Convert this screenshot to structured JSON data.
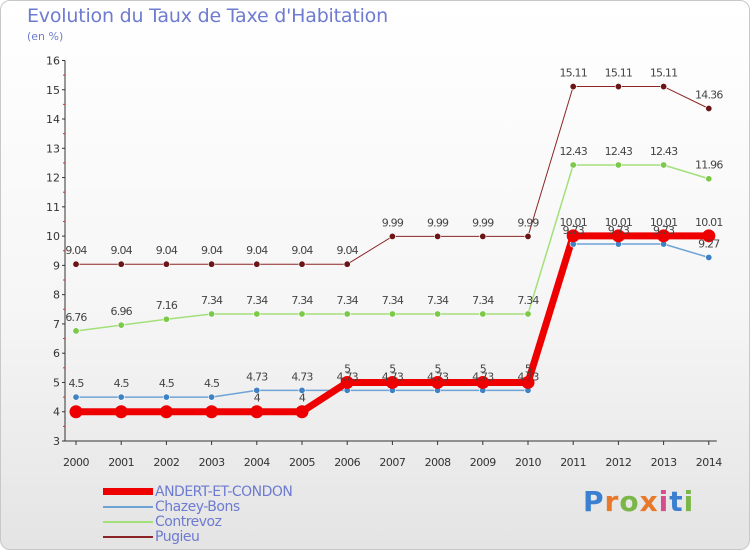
{
  "title": "Evolution du Taux de Taxe d'Habitation",
  "unit": "(en %)",
  "brand": {
    "letters": [
      "P",
      "r",
      "o",
      "x",
      "i",
      "t",
      "i"
    ],
    "colors": [
      "#3a7fd0",
      "#e8782a",
      "#7ab648",
      "#e8782a",
      "#d64c8c",
      "#3a7fd0",
      "#7ab648"
    ]
  },
  "chart_data": {
    "type": "line",
    "title": "Evolution du Taux de Taxe d'Habitation",
    "ylabel": "(en %)",
    "xlabel": "",
    "categories": [
      "2000",
      "2001",
      "2002",
      "2003",
      "2004",
      "2005",
      "2006",
      "2007",
      "2008",
      "2009",
      "2010",
      "2011",
      "2012",
      "2013",
      "2014"
    ],
    "ylim": [
      3,
      16
    ],
    "yticks": [
      "3",
      "4",
      "5",
      "6",
      "7",
      "8",
      "9",
      "10",
      "11",
      "12",
      "13",
      "14",
      "15",
      "16"
    ],
    "grid": false,
    "legend_position": "bottom-left",
    "series": [
      {
        "name": "Pugieu",
        "color": "#8b2525",
        "dot": "#6b1616",
        "width": 1,
        "values": [
          9.04,
          9.04,
          9.04,
          9.04,
          9.04,
          9.04,
          9.04,
          9.99,
          9.99,
          9.99,
          9.99,
          15.11,
          15.11,
          15.11,
          14.36
        ],
        "labels": [
          "9.04",
          "9.04",
          "9.04",
          "9.04",
          "9.04",
          "9.04",
          "9.04",
          "9.99",
          "9.99",
          "9.99",
          "9.99",
          "15.11",
          "15.11",
          "15.11",
          "14.36"
        ]
      },
      {
        "name": "Contrevoz",
        "color": "#a3e07a",
        "dot": "#7cc94a",
        "width": 1.5,
        "values": [
          6.76,
          6.96,
          7.16,
          7.34,
          7.34,
          7.34,
          7.34,
          7.34,
          7.34,
          7.34,
          7.34,
          12.43,
          12.43,
          12.43,
          11.96
        ],
        "labels": [
          "6.76",
          "6.96",
          "7.16",
          "7.34",
          "7.34",
          "7.34",
          "7.34",
          "7.34",
          "7.34",
          "7.34",
          "7.34",
          "12.43",
          "12.43",
          "12.43",
          "11.96"
        ]
      },
      {
        "name": "Chazey-Bons",
        "color": "#6fa3d6",
        "dot": "#3e82c4",
        "width": 1.5,
        "values": [
          4.5,
          4.5,
          4.5,
          4.5,
          4.73,
          4.73,
          4.73,
          4.73,
          4.73,
          4.73,
          4.73,
          9.73,
          9.73,
          9.73,
          9.27
        ],
        "labels": [
          "4.5",
          "4.5",
          "4.5",
          "4.5",
          "4.73",
          "4.73",
          "4.73",
          "4.73",
          "4.73",
          "4.73",
          "4.73",
          "9.73",
          "9.73",
          "9.73",
          "9.27"
        ]
      },
      {
        "name": "ANDERT-ET-CONDON",
        "color": "#ee0000",
        "dot": "#ee0000",
        "width": 7,
        "values": [
          4,
          4,
          4,
          4,
          4,
          4,
          5,
          5,
          5,
          5,
          5,
          10.01,
          10.01,
          10.01,
          10.01
        ],
        "labels": [
          "",
          "",
          "",
          "",
          "4",
          "4",
          "5",
          "5",
          "5",
          "5",
          "5",
          "10.01",
          "10.01",
          "10.01",
          "10.01"
        ]
      }
    ],
    "legend": [
      "ANDERT-ET-CONDON",
      "Chazey-Bons",
      "Contrevoz",
      "Pugieu"
    ]
  }
}
